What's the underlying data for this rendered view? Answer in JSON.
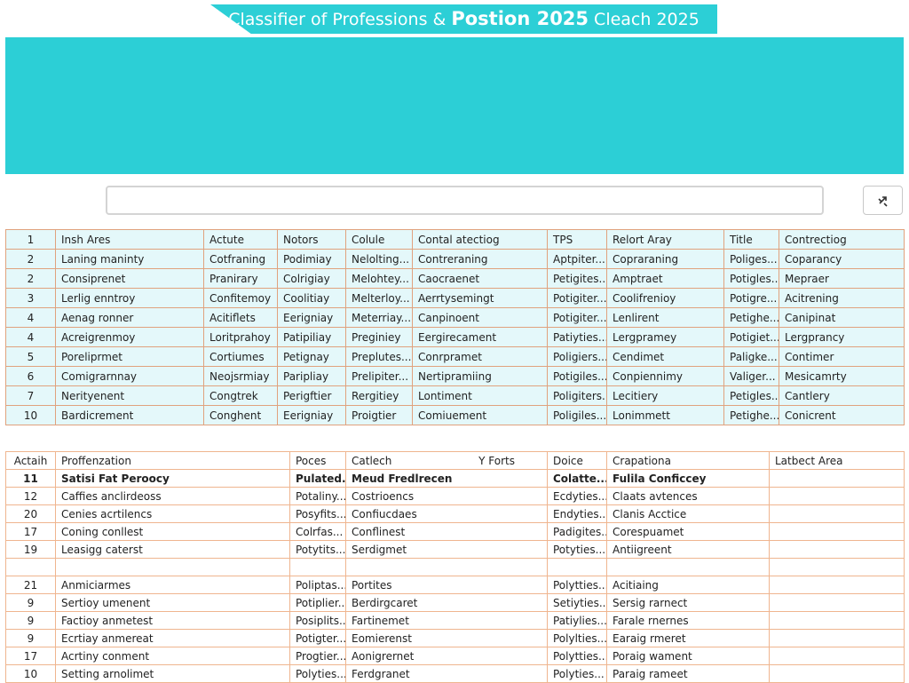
{
  "header": {
    "title": [
      "Classifier of Professions &",
      "Postion 2025",
      "Cleach 2025"
    ]
  },
  "table_a": {
    "header": [
      "1",
      "Insh Ares",
      "Actute",
      "Notors",
      "Colule",
      "Contal atectiog",
      "TPS",
      "Relort Aray",
      "Title",
      "Contrectiog"
    ],
    "rows": [
      [
        "2",
        "Laning maninty",
        "Cotfraning",
        "Podimiay",
        "Nelolting...",
        "Contreraning",
        "Aptpiter...",
        "Copraraning",
        "Poliges...",
        "Coparancy"
      ],
      [
        "2",
        "Consiprenet",
        "Pranirary",
        "Colrigiay",
        "Melohtey...",
        "Caocraenet",
        "Petigites...",
        "Amptraet",
        "Potigles...",
        "Mepraer"
      ],
      [
        "3",
        "Lerlig enntroy",
        "Confitemoy",
        "Coolitiay",
        "Melterloy...",
        "Aerrtysemingt",
        "Potigiter...",
        "Coolifrenioy",
        "Potigre...",
        "Acitrening"
      ],
      [
        "4",
        "Aenag ronner",
        "Acitiflets",
        "Eerigniay",
        "Meterriay...",
        "Canpinoent",
        "Potigiter...",
        "Lenlirent",
        "Petighe...",
        "Canipinat"
      ],
      [
        "4",
        "Acreigrenmoy",
        "Loritprahoy",
        "Patipiliay",
        "Preginiey",
        "Eergirecament",
        "Patiyties...",
        "Lergpramey",
        "Potigiet...",
        "Lergprancy"
      ],
      [
        "5",
        "Poreliprmet",
        "Cortiumes",
        "Petignay",
        "Preplutes...",
        "Conrpramet",
        "Poligiers...",
        "Cendimet",
        "Paligke...",
        "Contimer"
      ],
      [
        "6",
        "Comigrarnnay",
        "Neojsrmiay",
        "Paripliay",
        "Prelipiter...",
        "Nertipramiing",
        "Potigiles...",
        "Conpiennimy",
        "Valiger...",
        "Mesicamrty"
      ],
      [
        "7",
        "Nerityenent",
        "Congtrek",
        "Perigftier",
        "Rergitiey",
        "Lontiment",
        "Poligiters...",
        "Lecitiery",
        "Petigles...",
        "Cantlery"
      ],
      [
        "10",
        "Bardicrement",
        "Conghent",
        "Eerigniay",
        "Proigtier",
        "Comiuement",
        "Poligiles...",
        "Lonimmett",
        "Petighe...",
        "Conicrent"
      ]
    ]
  },
  "table_b": {
    "header": [
      "Actaih",
      "Proffenzation",
      "Poces",
      [
        "Catlech",
        "Y Forts"
      ],
      "Doice",
      "Crapationa",
      "Latbect Area"
    ],
    "rows_top": [
      [
        "11",
        "Satisi Fat Peroocy",
        "Pulated...",
        "Meud Fredlrecen",
        "Colatte...",
        "Fulila Conficcey"
      ],
      [
        "12",
        "Caffies anclirdeoss",
        "Potaliny...",
        "Costrioencs",
        "Ecdyties...",
        "Claats avtences"
      ],
      [
        "20",
        "Cenies acrtilencs",
        "Posyfits...",
        "Confiucdaes",
        "Endyties...",
        "Clanis Acctice"
      ],
      [
        "17",
        "Coning conllest",
        "Colrfas...",
        "Conflinest",
        "Padigites...",
        "Corespuamet"
      ],
      [
        "19",
        "Leasigg caterst",
        "Potytits...",
        "Serdigmet",
        "Potyties...",
        "Antiigreent"
      ]
    ],
    "rows_bottom": [
      [
        "21",
        "Anmiciarmes",
        "Poliptas...",
        "Portites",
        "Polytties...",
        "Acitiaing"
      ],
      [
        "9",
        "Sertioy umenent",
        "Potiplier...",
        "Berdirgcaret",
        "Setiyties...",
        "Sersig rarnect"
      ],
      [
        "9",
        "Factioy anmetest",
        "Posiplits...",
        "Fartinemet",
        "Patiylies...",
        "Farale rnernes"
      ],
      [
        "9",
        "Ecrtiay anmereat",
        "Potigter...",
        "Eomierenst",
        "Polylties...",
        "Earaig rmeret"
      ],
      [
        "17",
        "Acrtiny conment",
        "Progtier...",
        "Aonigrernet",
        "Polytties...",
        "Poraig wament"
      ],
      [
        "10",
        "Setting arnolimet",
        "Polyties...",
        "Ferdgranet",
        "Polyties...",
        "Paraig rameet"
      ]
    ]
  }
}
